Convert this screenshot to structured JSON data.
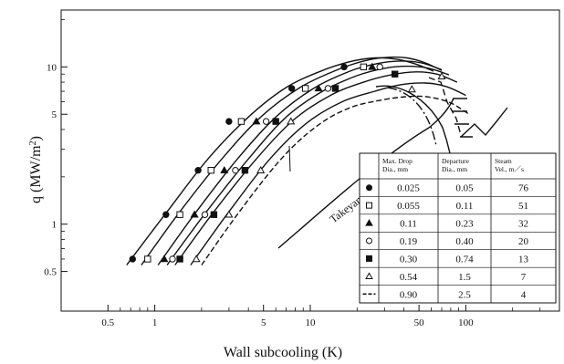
{
  "chart_data": {
    "type": "scatter",
    "xlabel": "Wall subcooling (K)",
    "ylabel_main": "q (MW/m",
    "ylabel_sup": "2",
    "ylabel_close": ")",
    "x_scale": "log",
    "y_scale": "log",
    "xlim": [
      0.25,
      400
    ],
    "ylim": [
      0.28,
      23
    ],
    "x_ticks": [
      {
        "value": 0.5,
        "label": "0.5"
      },
      {
        "value": 1,
        "label": "1"
      },
      {
        "value": 5,
        "label": "5"
      },
      {
        "value": 10,
        "label": "10"
      },
      {
        "value": 50,
        "label": "50"
      },
      {
        "value": 100,
        "label": "100"
      }
    ],
    "x_minor_ticks": [
      0.6,
      0.7,
      0.8,
      0.9,
      2,
      3,
      4,
      6,
      7,
      8,
      9,
      20,
      30,
      40,
      60,
      70,
      80,
      90,
      200,
      300
    ],
    "y_ticks": [
      {
        "value": 0.5,
        "label": "0.5"
      },
      {
        "value": 1,
        "label": "1"
      },
      {
        "value": 5,
        "label": "5"
      },
      {
        "value": 10,
        "label": "10"
      }
    ],
    "y_minor_ticks": [
      0.6,
      0.7,
      0.8,
      0.9,
      2,
      3,
      4,
      6,
      7,
      8,
      9,
      20
    ],
    "grid": false,
    "table": {
      "headers": [
        [
          "Max. Drop",
          "Dia., mm"
        ],
        [
          "Departure",
          "Dia., mm"
        ],
        [
          "Steam",
          "Vel., m／s"
        ]
      ],
      "rows": [
        {
          "marker": "filled-circle",
          "max_drop": "0.025",
          "departure": "0.05",
          "steam": "76"
        },
        {
          "marker": "open-square",
          "max_drop": "0.055",
          "departure": "0.11",
          "steam": "51"
        },
        {
          "marker": "filled-triangle",
          "max_drop": "0.11",
          "departure": "0.23",
          "steam": "32"
        },
        {
          "marker": "open-circle",
          "max_drop": "0.19",
          "departure": "0.40",
          "steam": "20"
        },
        {
          "marker": "filled-square",
          "max_drop": "0.30",
          "departure": "0.74",
          "steam": "13"
        },
        {
          "marker": "open-triangle",
          "max_drop": "0.54",
          "departure": "1.5",
          "steam": "7"
        },
        {
          "marker": "dashed-line",
          "max_drop": "0.90",
          "departure": "2.5",
          "steam": "4"
        }
      ]
    },
    "series": [
      {
        "marker": "filled-circle",
        "points": [
          [
            0.72,
            0.6
          ],
          [
            1.18,
            1.15
          ],
          [
            1.9,
            2.2
          ],
          [
            3.0,
            4.5
          ],
          [
            7.6,
            7.3
          ],
          [
            16.5,
            10.0
          ]
        ],
        "curve": [
          [
            0.66,
            0.55
          ],
          [
            1.2,
            1.2
          ],
          [
            2.2,
            2.6
          ],
          [
            4.0,
            4.8
          ],
          [
            7.0,
            7.4
          ],
          [
            12,
            9.5
          ],
          [
            18,
            10.8
          ],
          [
            26,
            11.4
          ],
          [
            36,
            11.2
          ],
          [
            48,
            10.4
          ],
          [
            62,
            9.4
          ]
        ]
      },
      {
        "marker": "open-square",
        "points": [
          [
            0.9,
            0.6
          ],
          [
            1.45,
            1.15
          ],
          [
            2.3,
            2.2
          ],
          [
            3.6,
            4.5
          ],
          [
            9.3,
            7.3
          ],
          [
            22,
            10.0
          ]
        ],
        "curve": [
          [
            0.82,
            0.55
          ],
          [
            1.45,
            1.2
          ],
          [
            2.7,
            2.6
          ],
          [
            4.8,
            4.8
          ],
          [
            8.6,
            7.4
          ],
          [
            15,
            9.6
          ],
          [
            22,
            10.9
          ],
          [
            31,
            11.5
          ],
          [
            42,
            11.4
          ],
          [
            55,
            10.6
          ],
          [
            70,
            9.5
          ]
        ]
      },
      {
        "marker": "filled-triangle",
        "points": [
          [
            1.15,
            0.6
          ],
          [
            1.8,
            1.15
          ],
          [
            2.8,
            2.2
          ],
          [
            4.5,
            4.5
          ],
          [
            11.3,
            7.3
          ],
          [
            25,
            10.0
          ]
        ],
        "curve": [
          [
            1.05,
            0.55
          ],
          [
            1.85,
            1.2
          ],
          [
            3.4,
            2.6
          ],
          [
            6.0,
            4.8
          ],
          [
            10.5,
            7.3
          ],
          [
            18,
            9.4
          ],
          [
            27,
            10.5
          ],
          [
            38,
            10.9
          ],
          [
            52,
            10.6
          ],
          [
            70,
            9.6
          ]
        ]
      },
      {
        "marker": "open-circle",
        "points": [
          [
            1.3,
            0.6
          ],
          [
            2.1,
            1.15
          ],
          [
            3.3,
            2.2
          ],
          [
            5.2,
            4.5
          ],
          [
            13,
            7.3
          ],
          [
            28,
            10.0
          ]
        ],
        "curve": [
          [
            1.2,
            0.55
          ],
          [
            2.15,
            1.2
          ],
          [
            4.0,
            2.6
          ],
          [
            7.0,
            4.8
          ],
          [
            12,
            7.0
          ],
          [
            20,
            8.8
          ],
          [
            30,
            9.8
          ],
          [
            42,
            10.1
          ],
          [
            58,
            9.8
          ],
          [
            78,
            8.9
          ]
        ]
      },
      {
        "marker": "filled-square",
        "points": [
          [
            1.45,
            0.6
          ],
          [
            2.4,
            1.15
          ],
          [
            3.8,
            2.2
          ],
          [
            6.0,
            4.5
          ],
          [
            14.5,
            7.3
          ],
          [
            35,
            9.0
          ]
        ],
        "curve": [
          [
            1.35,
            0.55
          ],
          [
            2.4,
            1.2
          ],
          [
            4.5,
            2.6
          ],
          [
            7.8,
            4.6
          ],
          [
            13.5,
            6.6
          ],
          [
            22,
            8.0
          ],
          [
            33,
            8.9
          ],
          [
            48,
            9.3
          ],
          [
            65,
            9.0
          ],
          [
            88,
            8.0
          ]
        ]
      },
      {
        "marker": "open-triangle",
        "points": [
          [
            1.85,
            0.6
          ],
          [
            3.0,
            1.15
          ],
          [
            4.8,
            2.2
          ],
          [
            7.5,
            4.5
          ],
          [
            45,
            7.2
          ],
          [
            70,
            8.7
          ]
        ],
        "curve": [
          [
            1.7,
            0.55
          ],
          [
            3.0,
            1.2
          ],
          [
            5.5,
            2.6
          ],
          [
            9.5,
            4.4
          ],
          [
            16,
            6.0
          ],
          [
            26,
            7.0
          ],
          [
            38,
            7.7
          ],
          [
            55,
            7.9
          ],
          [
            75,
            7.5
          ],
          [
            100,
            6.6
          ]
        ]
      },
      {
        "marker": "dashed-line",
        "points": [],
        "curve": [
          [
            2.0,
            0.55
          ],
          [
            3.5,
            1.2
          ],
          [
            6.5,
            2.6
          ],
          [
            11,
            4.2
          ],
          [
            18,
            5.5
          ],
          [
            30,
            6.2
          ],
          [
            45,
            6.5
          ],
          [
            60,
            6.4
          ],
          [
            80,
            5.9
          ],
          [
            105,
            5.0
          ]
        ]
      }
    ],
    "annotations": [
      {
        "text": "Takeyama – Shimizu (4",
        "x": 26,
        "y": 1.6,
        "angle": -37
      }
    ]
  }
}
